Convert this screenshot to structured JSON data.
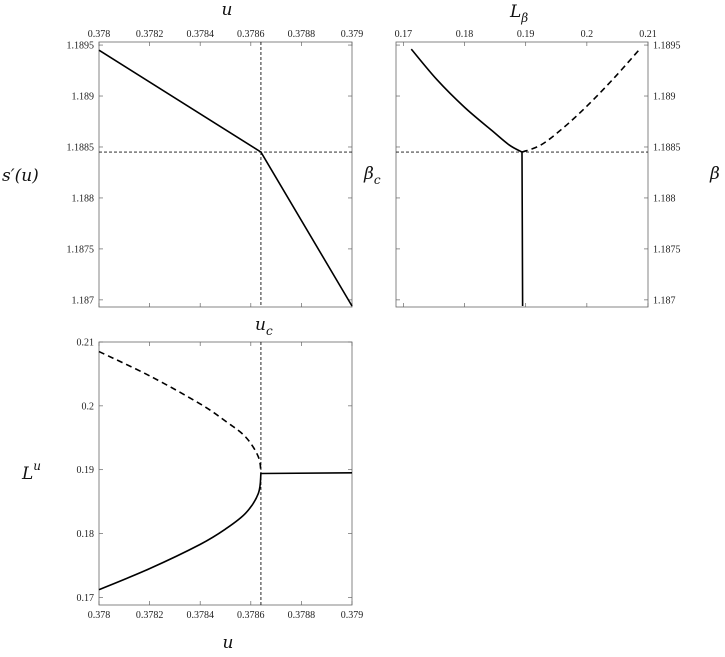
{
  "chart_data": [
    {
      "type": "line",
      "id": "panel-a",
      "title": "",
      "xlabel": "u",
      "ylabel": "s′(u)",
      "x_axis_side": "top",
      "xlim": [
        0.378,
        0.379
      ],
      "ylim": [
        1.18693,
        1.18953
      ],
      "x_ticks": [
        0.378,
        0.3782,
        0.3784,
        0.3786,
        0.3788,
        0.379
      ],
      "x_tick_labels": [
        "0.378",
        "0.3782",
        "0.3784",
        "0.3786",
        "0.3788",
        "0.379"
      ],
      "y_ticks": [
        1.187,
        1.1875,
        1.188,
        1.1885,
        1.189,
        1.1895
      ],
      "y_tick_labels": [
        "1.187",
        "1.1875",
        "1.188",
        "1.1885",
        "1.189",
        "1.1895"
      ],
      "ref_lines": {
        "x": 0.37864,
        "y": 1.18845
      },
      "series": [
        {
          "style": "solid",
          "x": [
            0.378,
            0.37864,
            0.379
          ],
          "y": [
            1.18945,
            1.18845,
            1.18694
          ]
        }
      ]
    },
    {
      "type": "line",
      "id": "panel-b",
      "title": "",
      "xlabel": "Lβ",
      "ylabel": "β",
      "side_label": "βc",
      "x_axis_side": "top",
      "y_axis_side": "right",
      "xlim": [
        0.1688,
        0.21
      ],
      "ylim": [
        1.18693,
        1.18953
      ],
      "x_ticks": [
        0.17,
        0.18,
        0.19,
        0.2,
        0.21
      ],
      "x_tick_labels": [
        "0.17",
        "0.18",
        "0.19",
        "0.2",
        "0.21"
      ],
      "y_ticks": [
        1.187,
        1.1875,
        1.188,
        1.1885,
        1.189,
        1.1895
      ],
      "y_tick_labels": [
        "1.187",
        "1.1875",
        "1.188",
        "1.1885",
        "1.189",
        "1.1895"
      ],
      "ref_lines": {
        "y": 1.18845
      },
      "series": [
        {
          "style": "solid",
          "x": [
            0.1713,
            0.1755,
            0.18,
            0.1845,
            0.1873,
            0.1894
          ],
          "y": [
            1.18946,
            1.18916,
            1.18889,
            1.18866,
            1.18852,
            1.18845
          ]
        },
        {
          "style": "solid",
          "x": [
            0.1894,
            0.18945,
            0.1895
          ],
          "y": [
            1.18845,
            1.1877,
            1.18694
          ]
        },
        {
          "style": "dashed",
          "x": [
            0.1894,
            0.1925,
            0.196,
            0.2,
            0.2045,
            0.2085
          ],
          "y": [
            1.18845,
            1.18852,
            1.18868,
            1.1889,
            1.18918,
            1.18945
          ]
        }
      ]
    },
    {
      "type": "line",
      "id": "panel-c",
      "title": "",
      "xlabel": "u",
      "ylabel": "L^u",
      "top_label": "u_c",
      "xlim": [
        0.378,
        0.379
      ],
      "ylim": [
        0.1688,
        0.21
      ],
      "x_ticks": [
        0.378,
        0.3782,
        0.3784,
        0.3786,
        0.3788,
        0.379
      ],
      "x_tick_labels": [
        "0.378",
        "0.3782",
        "0.3784",
        "0.3786",
        "0.3788",
        "0.379"
      ],
      "y_ticks": [
        0.17,
        0.18,
        0.19,
        0.2,
        0.21
      ],
      "y_tick_labels": [
        "0.17",
        "0.18",
        "0.19",
        "0.2",
        "0.21"
      ],
      "ref_lines": {
        "x": 0.37864
      },
      "series": [
        {
          "style": "solid",
          "x": [
            0.378,
            0.3782,
            0.3784,
            0.3785,
            0.37858,
            0.37863,
            0.37864
          ],
          "y": [
            0.1712,
            0.1745,
            0.1783,
            0.1807,
            0.1832,
            0.1863,
            0.1894
          ]
        },
        {
          "style": "dashed",
          "x": [
            0.378,
            0.3782,
            0.3784,
            0.3785,
            0.37858,
            0.37863,
            0.37864
          ],
          "y": [
            0.2085,
            0.2047,
            0.2003,
            0.1976,
            0.1951,
            0.192,
            0.1894
          ]
        },
        {
          "style": "solid",
          "x": [
            0.37864,
            0.379
          ],
          "y": [
            0.1894,
            0.1895
          ]
        }
      ]
    }
  ],
  "labels": {
    "a_top": "u",
    "a_left_main": "s′(u)",
    "b_top_main": "L",
    "b_top_sub": "β",
    "b_left_main": "β",
    "b_left_sub": "c",
    "b_right": "β",
    "c_top_main": "u",
    "c_top_sub": "c",
    "c_left_main": "L",
    "c_left_sup": "u",
    "c_bottom": "u"
  }
}
